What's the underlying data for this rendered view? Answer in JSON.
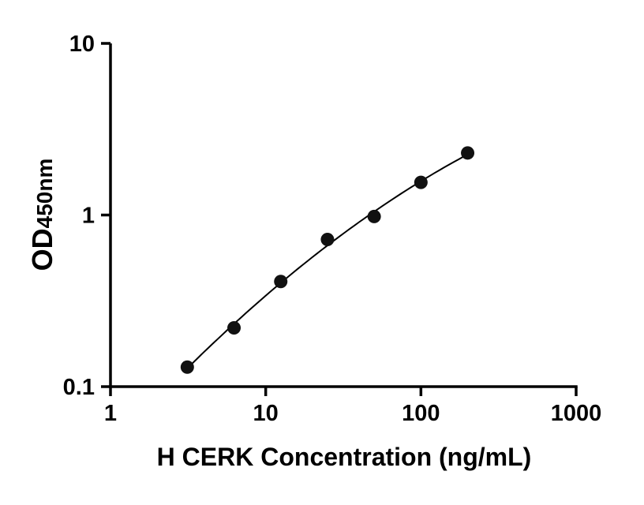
{
  "chart_data": {
    "type": "scatter",
    "title": "",
    "xlabel": "H CERK Concentration (ng/mL)",
    "ylabel_main": "OD",
    "ylabel_sub": "450nm",
    "x_scale": "log",
    "y_scale": "log",
    "xlim": [
      1,
      1000
    ],
    "ylim": [
      0.1,
      10
    ],
    "x_ticks": [
      1,
      10,
      100,
      1000
    ],
    "x_tick_labels": [
      "1",
      "10",
      "100",
      "1000"
    ],
    "y_ticks": [
      0.1,
      1,
      10
    ],
    "y_tick_labels": [
      "0.1",
      "1",
      "10"
    ],
    "grid": false,
    "legend": false,
    "background": "#ffffff",
    "axis_color": "#000000",
    "marker_color": "#111111",
    "line_color": "#000000",
    "series": [
      {
        "name": "standard-curve",
        "marker": "filled-circle",
        "line": "fitted-curve",
        "x": [
          3.125,
          6.25,
          12.5,
          25,
          50,
          100,
          200
        ],
        "y": [
          0.13,
          0.22,
          0.41,
          0.72,
          0.98,
          1.55,
          2.3
        ]
      }
    ],
    "fit_line": {
      "x_start": 3.0,
      "x_end": 200
    }
  }
}
